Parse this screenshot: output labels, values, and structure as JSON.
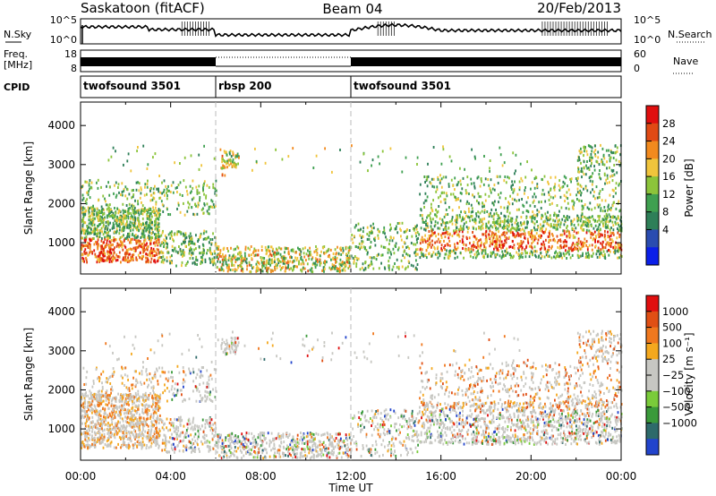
{
  "header": {
    "station": "Saskatoon (fitACF)",
    "beam": "Beam 04",
    "date": "20/Feb/2013"
  },
  "strip_panels": {
    "left": {
      "nsky": "N.Sky",
      "freq_line1": "Freq.",
      "freq_line2": "[MHz]",
      "cpid": "CPID"
    },
    "right": {
      "nsearch": "N.Search",
      "nave": "Nave"
    },
    "nsky_ticks": [
      "10^5",
      "10^0"
    ],
    "freq_ticks": [
      "18",
      "8"
    ],
    "nave_ticks": [
      "60",
      "0"
    ],
    "cpid_segments": [
      {
        "label": "twofsound 3501",
        "start_ut": 0
      },
      {
        "label": "rbsp 200",
        "start_ut": 6
      },
      {
        "label": "twofsound 3501",
        "start_ut": 12
      }
    ]
  },
  "chart_data": [
    {
      "type": "heatmap",
      "panel": "power",
      "ylabel": "Slant Range [km]",
      "xlabel": "",
      "xlim_hours": [
        0,
        24
      ],
      "ylim_km": [
        200,
        4600
      ],
      "yticks": [
        "4000",
        "3000",
        "2000",
        "1000"
      ],
      "colorbar": {
        "title": "Power [dB]",
        "ticks": [
          "28",
          "24",
          "20",
          "16",
          "12",
          "8",
          "4"
        ],
        "colors": [
          "#0b1fe8",
          "#2a4cb0",
          "#2e7f58",
          "#3fa050",
          "#8cc43a",
          "#f0c43c",
          "#f28a1e",
          "#e04a14",
          "#e00f0f"
        ]
      },
      "dividers_ut": [
        6,
        12
      ]
    },
    {
      "type": "heatmap",
      "panel": "velocity",
      "ylabel": "Slant Range [km]",
      "xlabel": "Time UT",
      "xlim_hours": [
        0,
        24
      ],
      "ylim_km": [
        200,
        4600
      ],
      "yticks": [
        "4000",
        "3000",
        "2000",
        "1000"
      ],
      "xticks": [
        "00:00",
        "04:00",
        "08:00",
        "12:00",
        "16:00",
        "20:00",
        "00:00"
      ],
      "colorbar": {
        "title": "Velocity [m s⁻¹]",
        "ticks": [
          "1000",
          "500",
          "100",
          "25",
          "−25",
          "−100",
          "−500",
          "−1000"
        ],
        "colors": [
          "#2244cc",
          "#2e6a6a",
          "#3a9a3a",
          "#7acb3a",
          "#c7c7c2",
          "#c7c7c2",
          "#f4a81e",
          "#f0781e",
          "#e04f14",
          "#e00f0f"
        ]
      },
      "dividers_ut": [
        6,
        12
      ]
    }
  ]
}
